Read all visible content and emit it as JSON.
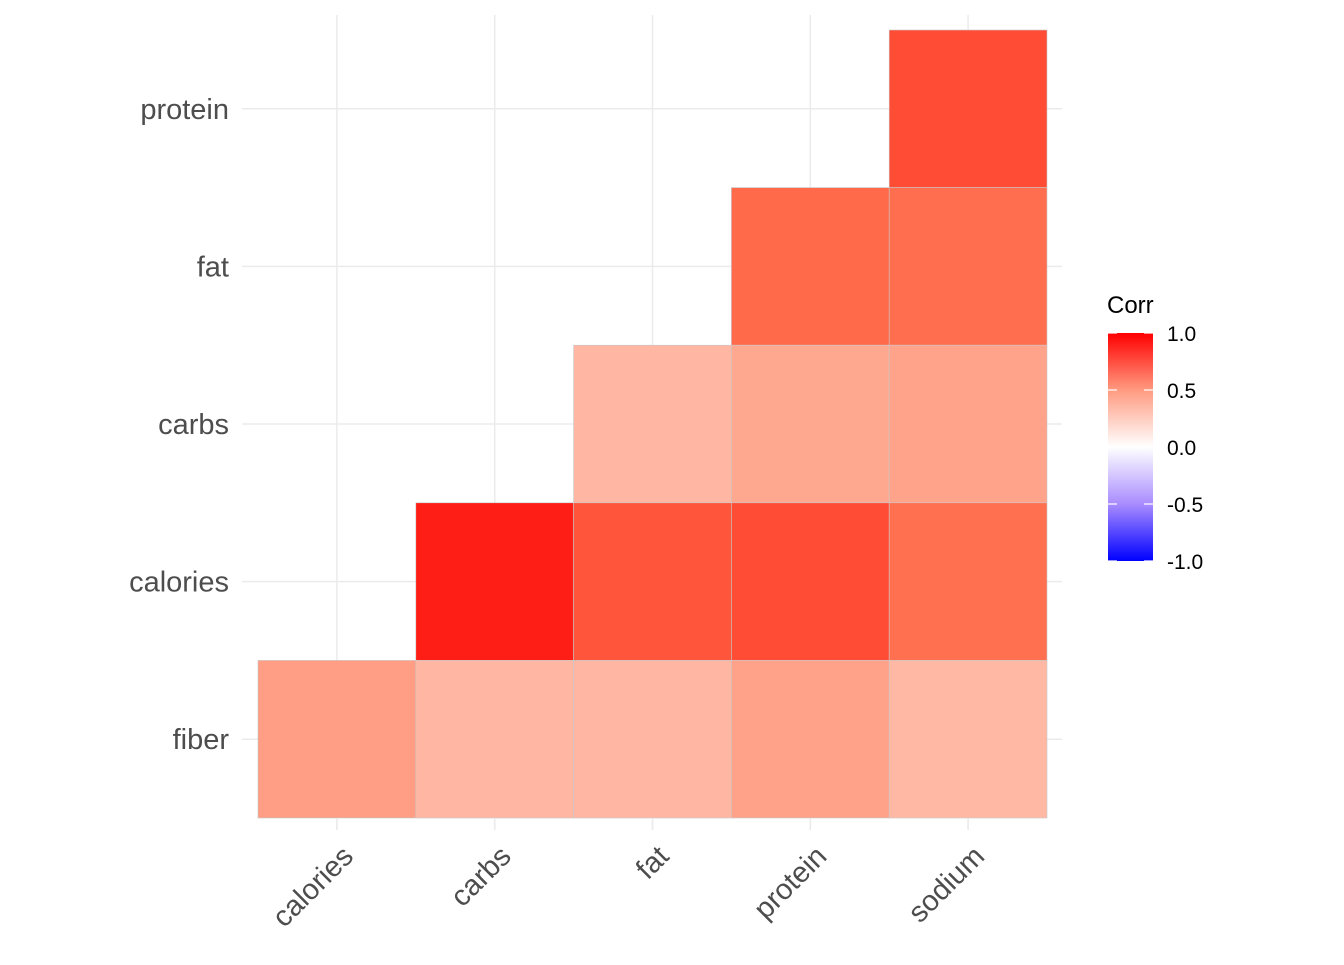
{
  "chart_data": {
    "type": "heatmap",
    "title": "",
    "xlabel": "",
    "ylabel": "",
    "x_categories": [
      "calories",
      "carbs",
      "fat",
      "protein",
      "sodium"
    ],
    "y_categories": [
      "fiber",
      "calories",
      "carbs",
      "fat",
      "protein"
    ],
    "cells": [
      {
        "x": "sodium",
        "y": "protein",
        "value": 0.82
      },
      {
        "x": "protein",
        "y": "fat",
        "value": 0.75
      },
      {
        "x": "sodium",
        "y": "fat",
        "value": 0.73
      },
      {
        "x": "fat",
        "y": "carbs",
        "value": 0.38
      },
      {
        "x": "protein",
        "y": "carbs",
        "value": 0.45
      },
      {
        "x": "sodium",
        "y": "carbs",
        "value": 0.47
      },
      {
        "x": "carbs",
        "y": "calories",
        "value": 0.93
      },
      {
        "x": "fat",
        "y": "calories",
        "value": 0.8
      },
      {
        "x": "protein",
        "y": "calories",
        "value": 0.82
      },
      {
        "x": "sodium",
        "y": "calories",
        "value": 0.72
      },
      {
        "x": "calories",
        "y": "fiber",
        "value": 0.5
      },
      {
        "x": "carbs",
        "y": "fiber",
        "value": 0.38
      },
      {
        "x": "fat",
        "y": "fiber",
        "value": 0.38
      },
      {
        "x": "protein",
        "y": "fiber",
        "value": 0.48
      },
      {
        "x": "sodium",
        "y": "fiber",
        "value": 0.37
      }
    ],
    "legend": {
      "title": "Corr",
      "placement": "right",
      "range": [
        -1,
        1
      ],
      "ticks": [
        "1.0",
        "0.5",
        "0.0",
        "-0.5",
        "-1.0"
      ],
      "tick_values": [
        1,
        0.5,
        0,
        -0.5,
        -1
      ],
      "low_color": "#0000FF",
      "mid_color": "#FFFFFF",
      "high_color": "#FF0000"
    },
    "grid": true
  }
}
